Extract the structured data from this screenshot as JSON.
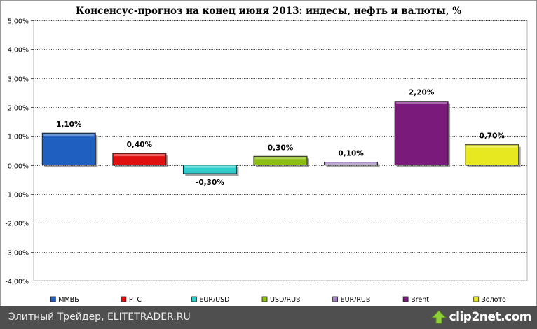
{
  "chart_data": {
    "type": "bar",
    "title": "Консенсус-прогноз на конец июня 2013: индесы, нефть и валюты, %",
    "categories": [
      "ММВБ",
      "РТС",
      "EUR/USD",
      "USD/RUB",
      "EUR/RUB",
      "Brent",
      "Золото"
    ],
    "values": [
      1.1,
      0.4,
      -0.3,
      0.3,
      0.1,
      2.2,
      0.7
    ],
    "value_labels": [
      "1,10%",
      "0,40%",
      "-0,30%",
      "0,30%",
      "0,10%",
      "2,20%",
      "0,70%"
    ],
    "colors": [
      "#1f5fbf",
      "#e01010",
      "#30cccc",
      "#8cbf10",
      "#a080c0",
      "#7a1a7a",
      "#e8e820"
    ],
    "ylim": [
      -4,
      5
    ],
    "y_ticks": [
      5,
      4,
      3,
      2,
      1,
      0,
      -1,
      -2,
      -3,
      -4
    ],
    "y_tick_labels": [
      "5,00%",
      "4,00%",
      "3,00%",
      "2,00%",
      "1,00%",
      "0,00%",
      "-1,00%",
      "-2,00%",
      "-3,00%",
      "-4,00%"
    ],
    "grid": true,
    "legend_placement": "bottom"
  },
  "footer": {
    "text": "Элитный Трейдер, ELITETRADER.RU",
    "brand": "clip2net.com"
  }
}
